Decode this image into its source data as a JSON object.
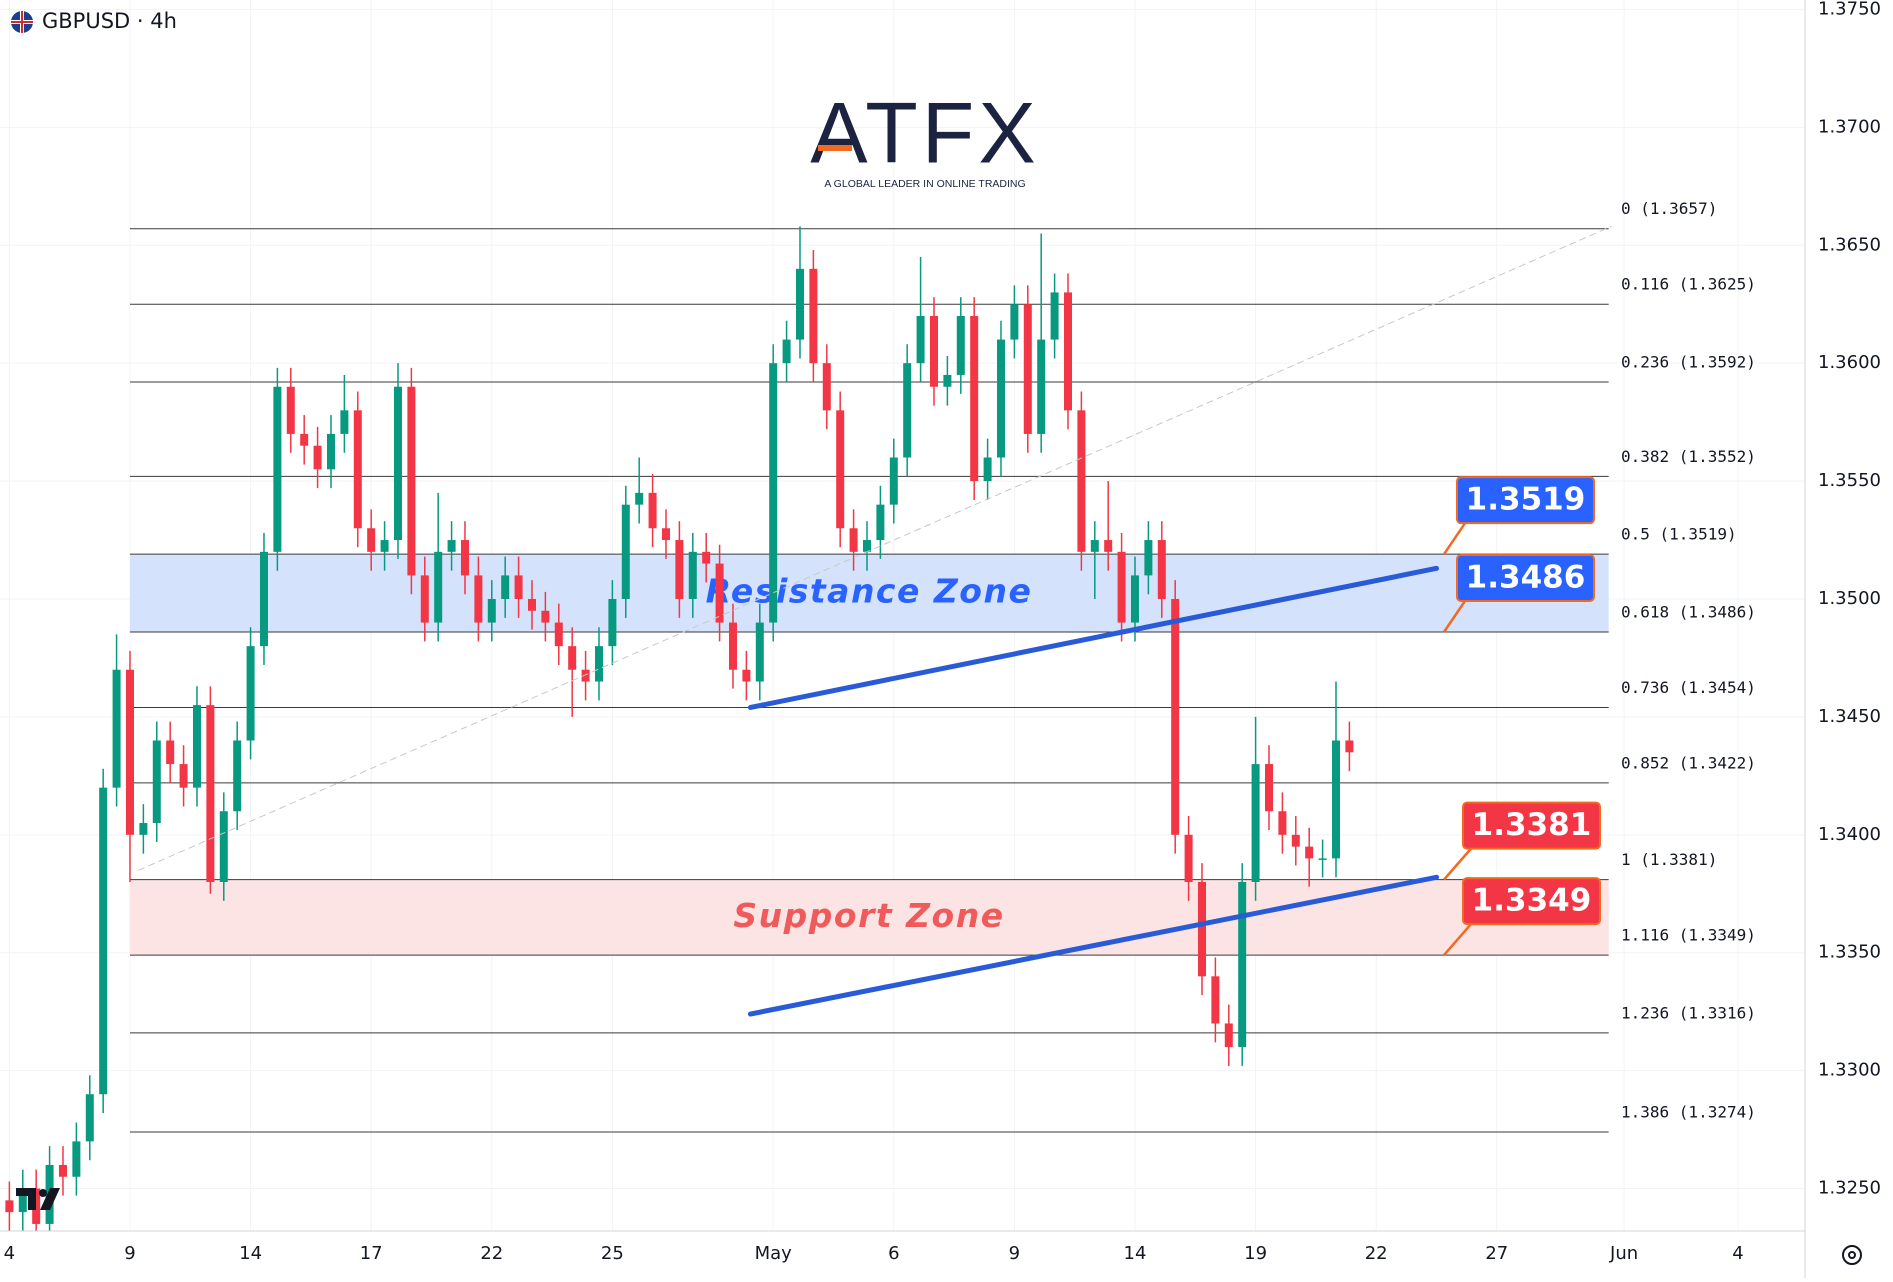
{
  "header": {
    "symbol": "GBPUSD · 4h"
  },
  "logo": {
    "title": "ATFX",
    "tagline": "A GLOBAL LEADER IN ONLINE TRADING"
  },
  "chart_data": {
    "type": "candlestick",
    "grid": true,
    "up_color": "#089981",
    "down_color": "#f23645",
    "xlim": [
      -1.4,
      268
    ],
    "ylim": [
      1.3232,
      1.3754
    ],
    "yticks": [
      {
        "value": 1.325,
        "label": "1.3250"
      },
      {
        "value": 1.33,
        "label": "1.3300"
      },
      {
        "value": 1.335,
        "label": "1.3350"
      },
      {
        "value": 1.34,
        "label": "1.3400"
      },
      {
        "value": 1.345,
        "label": "1.3450"
      },
      {
        "value": 1.35,
        "label": "1.3500"
      },
      {
        "value": 1.355,
        "label": "1.3550"
      },
      {
        "value": 1.36,
        "label": "1.3600"
      },
      {
        "value": 1.365,
        "label": "1.3650"
      },
      {
        "value": 1.37,
        "label": "1.3700"
      },
      {
        "value": 1.375,
        "label": "1.3750"
      }
    ],
    "xticks": [
      {
        "value": 0,
        "label": "4"
      },
      {
        "value": 18,
        "label": "9"
      },
      {
        "value": 36,
        "label": "14"
      },
      {
        "value": 54,
        "label": "17"
      },
      {
        "value": 72,
        "label": "22"
      },
      {
        "value": 90,
        "label": "25"
      },
      {
        "value": 114,
        "label": "May"
      },
      {
        "value": 132,
        "label": "6"
      },
      {
        "value": 150,
        "label": "9"
      },
      {
        "value": 168,
        "label": "14"
      },
      {
        "value": 186,
        "label": "19"
      },
      {
        "value": 204,
        "label": "22"
      },
      {
        "value": 222,
        "label": "27"
      },
      {
        "value": 241,
        "label": "Jun"
      },
      {
        "value": 258,
        "label": "4"
      }
    ],
    "x": [
      0,
      2,
      4,
      6,
      8,
      10,
      12,
      14,
      16,
      18,
      20,
      22,
      24,
      26,
      28,
      30,
      32,
      34,
      36,
      38,
      40,
      42,
      44,
      46,
      48,
      50,
      52,
      54,
      56,
      58,
      60,
      62,
      64,
      66,
      68,
      70,
      72,
      74,
      76,
      78,
      80,
      82,
      84,
      86,
      88,
      90,
      92,
      94,
      96,
      98,
      100,
      102,
      104,
      106,
      108,
      110,
      112,
      114,
      116,
      118,
      120,
      122,
      124,
      126,
      128,
      130,
      132,
      134,
      136,
      138,
      140,
      142,
      144,
      146,
      148,
      150,
      152,
      154,
      156,
      158,
      160,
      162,
      164,
      166,
      168,
      170,
      172,
      174,
      176,
      178,
      180,
      182,
      184,
      186,
      188,
      190,
      192,
      194,
      196,
      198,
      200
    ],
    "open": [
      1.3245,
      1.324,
      1.325,
      1.3235,
      1.326,
      1.3255,
      1.327,
      1.329,
      1.342,
      1.347,
      1.34,
      1.3405,
      1.344,
      1.343,
      1.342,
      1.3455,
      1.338,
      1.341,
      1.344,
      1.348,
      1.352,
      1.359,
      1.357,
      1.3565,
      1.3555,
      1.357,
      1.358,
      1.353,
      1.352,
      1.3525,
      1.359,
      1.351,
      1.349,
      1.352,
      1.3525,
      1.351,
      1.349,
      1.35,
      1.351,
      1.35,
      1.3495,
      1.349,
      1.348,
      1.347,
      1.3465,
      1.348,
      1.35,
      1.354,
      1.3545,
      1.353,
      1.3525,
      1.35,
      1.352,
      1.3515,
      1.349,
      1.347,
      1.3465,
      1.349,
      1.36,
      1.361,
      1.364,
      1.36,
      1.358,
      1.353,
      1.352,
      1.3525,
      1.354,
      1.356,
      1.36,
      1.362,
      1.359,
      1.3595,
      1.362,
      1.355,
      1.356,
      1.361,
      1.3625,
      1.357,
      1.361,
      1.363,
      1.358,
      1.352,
      1.3525,
      1.352,
      1.349,
      1.351,
      1.3525,
      1.35,
      1.34,
      1.338,
      1.334,
      1.332,
      1.331,
      1.338,
      1.343,
      1.341,
      1.34,
      1.3395,
      1.339,
      1.339,
      1.344
    ],
    "high": [
      1.3253,
      1.3258,
      1.3258,
      1.3268,
      1.3268,
      1.3278,
      1.3298,
      1.3428,
      1.3485,
      1.3478,
      1.3413,
      1.3448,
      1.3448,
      1.3438,
      1.3463,
      1.3463,
      1.3418,
      1.3448,
      1.3488,
      1.3528,
      1.3598,
      1.3598,
      1.3578,
      1.3573,
      1.3578,
      1.3595,
      1.3588,
      1.3538,
      1.3533,
      1.36,
      1.3598,
      1.3518,
      1.3545,
      1.3533,
      1.3533,
      1.3518,
      1.3508,
      1.3518,
      1.3518,
      1.3508,
      1.3503,
      1.3498,
      1.3488,
      1.3478,
      1.3488,
      1.3508,
      1.3548,
      1.356,
      1.3553,
      1.3538,
      1.3533,
      1.3528,
      1.3528,
      1.3523,
      1.3498,
      1.3478,
      1.3498,
      1.3608,
      1.3618,
      1.3658,
      1.3648,
      1.3608,
      1.3588,
      1.3538,
      1.3533,
      1.3548,
      1.3568,
      1.3608,
      1.3645,
      1.3628,
      1.3603,
      1.3628,
      1.3628,
      1.3568,
      1.3618,
      1.3633,
      1.3633,
      1.3655,
      1.3638,
      1.3638,
      1.3588,
      1.3533,
      1.355,
      1.3528,
      1.3518,
      1.3533,
      1.3533,
      1.3508,
      1.3408,
      1.3388,
      1.3348,
      1.3328,
      1.3388,
      1.345,
      1.3438,
      1.3418,
      1.3408,
      1.3403,
      1.3398,
      1.3465,
      1.3448
    ],
    "low": [
      1.3232,
      1.3232,
      1.3227,
      1.3227,
      1.3247,
      1.3247,
      1.3262,
      1.3282,
      1.3412,
      1.338,
      1.3392,
      1.3397,
      1.3422,
      1.3412,
      1.3412,
      1.3375,
      1.3372,
      1.3402,
      1.3432,
      1.3472,
      1.3512,
      1.3562,
      1.3557,
      1.3547,
      1.3547,
      1.3562,
      1.3522,
      1.3512,
      1.3512,
      1.3517,
      1.3502,
      1.3482,
      1.3482,
      1.3512,
      1.3502,
      1.3482,
      1.3482,
      1.3492,
      1.3492,
      1.3487,
      1.3482,
      1.3472,
      1.345,
      1.3457,
      1.3457,
      1.3472,
      1.3492,
      1.3532,
      1.3522,
      1.3517,
      1.3492,
      1.3492,
      1.3507,
      1.3482,
      1.3462,
      1.3457,
      1.3457,
      1.3482,
      1.3592,
      1.3602,
      1.3592,
      1.3572,
      1.3522,
      1.3512,
      1.3512,
      1.3517,
      1.3532,
      1.3552,
      1.3592,
      1.3582,
      1.3582,
      1.3587,
      1.3542,
      1.3542,
      1.3552,
      1.3602,
      1.3562,
      1.3562,
      1.3602,
      1.3572,
      1.3512,
      1.35,
      1.3512,
      1.3482,
      1.3482,
      1.3502,
      1.3492,
      1.3392,
      1.3372,
      1.3332,
      1.3312,
      1.3302,
      1.3302,
      1.3372,
      1.3402,
      1.3392,
      1.3387,
      1.3378,
      1.3382,
      1.3382,
      1.3427
    ],
    "close": [
      1.324,
      1.325,
      1.3235,
      1.326,
      1.3255,
      1.327,
      1.329,
      1.342,
      1.347,
      1.34,
      1.3405,
      1.344,
      1.343,
      1.342,
      1.3455,
      1.338,
      1.341,
      1.344,
      1.348,
      1.352,
      1.359,
      1.357,
      1.3565,
      1.3555,
      1.357,
      1.358,
      1.353,
      1.352,
      1.3525,
      1.359,
      1.351,
      1.349,
      1.352,
      1.3525,
      1.351,
      1.349,
      1.35,
      1.351,
      1.35,
      1.3495,
      1.349,
      1.348,
      1.347,
      1.3465,
      1.348,
      1.35,
      1.354,
      1.3545,
      1.353,
      1.3525,
      1.35,
      1.352,
      1.3515,
      1.349,
      1.347,
      1.3465,
      1.349,
      1.36,
      1.361,
      1.364,
      1.36,
      1.358,
      1.353,
      1.352,
      1.3525,
      1.354,
      1.356,
      1.36,
      1.362,
      1.359,
      1.3595,
      1.362,
      1.355,
      1.356,
      1.361,
      1.3625,
      1.357,
      1.361,
      1.363,
      1.358,
      1.352,
      1.3525,
      1.352,
      1.349,
      1.351,
      1.3525,
      1.35,
      1.34,
      1.338,
      1.334,
      1.332,
      1.331,
      1.338,
      1.343,
      1.341,
      1.34,
      1.3395,
      1.339,
      1.339,
      1.344,
      1.3435
    ],
    "fib_levels": [
      {
        "label": "0 (1.3657)",
        "value": 1.3657
      },
      {
        "label": "0.116 (1.3625)",
        "value": 1.3625
      },
      {
        "label": "0.236 (1.3592)",
        "value": 1.3592
      },
      {
        "label": "0.382 (1.3552)",
        "value": 1.3552
      },
      {
        "label": "0.5 (1.3519)",
        "value": 1.3519
      },
      {
        "label": "0.618 (1.3486)",
        "value": 1.3486
      },
      {
        "label": "0.736 (1.3454)",
        "value": 1.3454
      },
      {
        "label": "0.852 (1.3422)",
        "value": 1.3422
      },
      {
        "label": "1 (1.3381)",
        "value": 1.3381
      },
      {
        "label": "1.116 (1.3349)",
        "value": 1.3349
      },
      {
        "label": "1.236 (1.3316)",
        "value": 1.3316
      },
      {
        "label": "1.386 (1.3274)",
        "value": 1.3274
      }
    ],
    "zones": [
      {
        "label": "Resistance Zone",
        "low": 1.3486,
        "high": 1.3519,
        "color": "#2962ff",
        "fill": "#d4e2fb"
      },
      {
        "label": "Support Zone",
        "low": 1.3349,
        "high": 1.3381,
        "color": "#ef5a5a",
        "fill": "#fde4e4"
      }
    ],
    "trend_lines": [
      {
        "x": [
          110.6,
          213
        ],
        "y": [
          1.3454,
          1.3513
        ],
        "color": "#2a5bd7"
      },
      {
        "x": [
          110.6,
          213
        ],
        "y": [
          1.3324,
          1.3382
        ],
        "color": "#2a5bd7"
      },
      {
        "x": [
          19.3,
          239.1
        ],
        "y": [
          1.3385,
          1.3658
        ],
        "color": "#c8c8c8",
        "dashed": true
      }
    ],
    "price_labels": [
      {
        "value": 1.3519,
        "color": "#2962ff"
      },
      {
        "value": 1.3486,
        "color": "#2962ff"
      },
      {
        "value": 1.3381,
        "color": "#f23645"
      },
      {
        "value": 1.3349,
        "color": "#f23645"
      }
    ]
  }
}
